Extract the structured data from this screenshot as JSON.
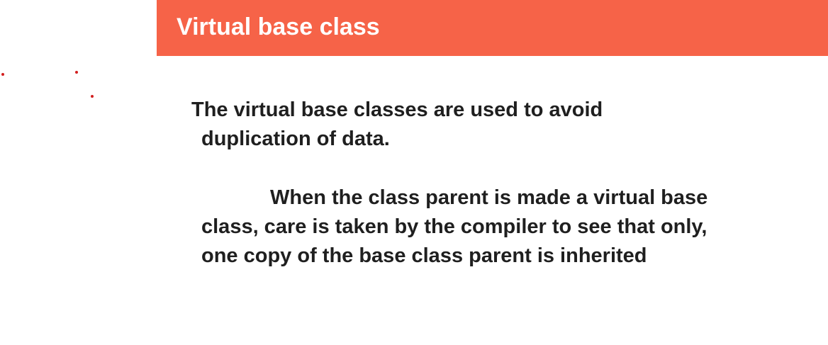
{
  "slide": {
    "title": "Virtual base class",
    "paragraphs": [
      "The virtual base classes are used to avoid",
      "duplication of data.",
      "When the class parent is made a virtual base",
      "class, care is taken by the compiler to see that only,",
      "one copy of the base class parent is inherited"
    ]
  },
  "colors": {
    "title_bar": "#f66348",
    "title_text": "#ffffff",
    "body_text": "#1f1f1f",
    "annotation_dots": "#d21f1f"
  }
}
